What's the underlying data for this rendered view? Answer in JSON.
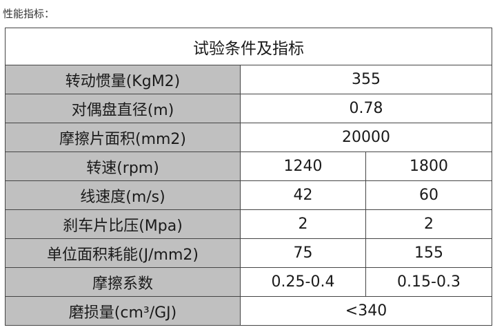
{
  "caption": "性能指标：",
  "table": {
    "title": "试验条件及指标",
    "rows": [
      {
        "label": "转动惯量(KgM2)",
        "values": [
          "355"
        ]
      },
      {
        "label": "对偶盘直径(m)",
        "values": [
          "0.78"
        ]
      },
      {
        "label": "摩擦片面积(mm2)",
        "values": [
          "20000"
        ]
      },
      {
        "label": "转速(rpm)",
        "values": [
          "1240",
          "1800"
        ]
      },
      {
        "label": "线速度(m/s)",
        "values": [
          "42",
          "60"
        ]
      },
      {
        "label": "刹车片比压(Mpa)",
        "values": [
          "2",
          "2"
        ]
      },
      {
        "label": "单位面积耗能(J/mm2)",
        "values": [
          "75",
          "155"
        ]
      },
      {
        "label": "摩擦系数",
        "values": [
          "0.25-0.4",
          "0.15-0.3"
        ]
      },
      {
        "label": "磨损量(cm³/GJ)",
        "values": [
          "<340"
        ]
      }
    ]
  },
  "colors": {
    "label_bg": "#c0c0c0",
    "border": "#444444"
  }
}
